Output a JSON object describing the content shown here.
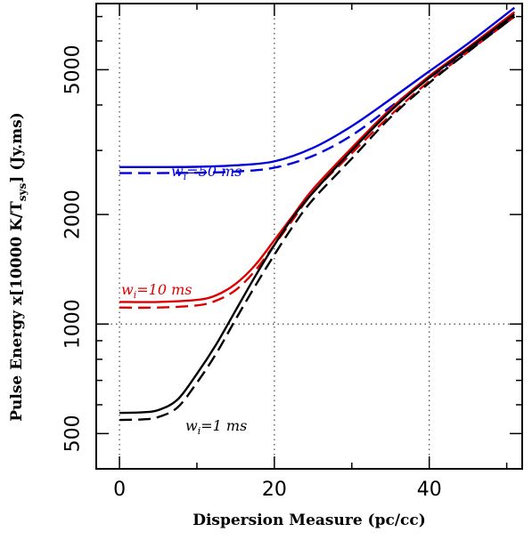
{
  "chart_data": {
    "type": "line",
    "xlabel": "Dispersion Measure (pc/cc)",
    "ylabel": "Pulse Energy x[10000 K/T",
    "ylabel_sub": "sys",
    "ylabel_tail": "]  (Jy.ms)",
    "xlim": [
      -3,
      52
    ],
    "ylim": [
      400,
      7600
    ],
    "y_scale": "log",
    "x_ticks": [
      0,
      20,
      40
    ],
    "x_tick_labels": [
      "0",
      "20",
      "40"
    ],
    "x_minor_ticks": [
      10,
      30,
      50
    ],
    "y_major_ticks": [
      500,
      1000,
      2000,
      5000
    ],
    "y_tick_labels": [
      "500",
      "1000",
      "2000",
      "5000"
    ],
    "y_minor_ticks": [
      600,
      700,
      800,
      900,
      3000,
      4000,
      6000,
      7000
    ],
    "reference_lines": {
      "x": [
        0,
        20,
        40
      ],
      "y": [
        1000
      ]
    },
    "annotations": [
      {
        "text": "w",
        "sub": "i",
        "rest": "=50 ms",
        "color": "#0000dd"
      },
      {
        "text": "w",
        "sub": "i",
        "rest": "=10 ms",
        "color": "#dd0000"
      },
      {
        "text": "w",
        "sub": "i",
        "rest": "=1 ms",
        "color": "#000000"
      }
    ],
    "series": [
      {
        "width": "50 ms",
        "style": "solid",
        "color": "#0000dd",
        "x": [
          0,
          5,
          10,
          15,
          20,
          25,
          30,
          35,
          40,
          45,
          51
        ],
        "y": [
          2700,
          2700,
          2705,
          2730,
          2800,
          3050,
          3500,
          4150,
          4950,
          5900,
          7400
        ]
      },
      {
        "width": "50 ms",
        "style": "dashed",
        "color": "#0000dd",
        "x": [
          0,
          5,
          10,
          15,
          20,
          25,
          30,
          35,
          40,
          45,
          51
        ],
        "y": [
          2600,
          2600,
          2605,
          2625,
          2690,
          2900,
          3300,
          3950,
          4750,
          5650,
          7000
        ]
      },
      {
        "width": "10 ms",
        "style": "solid",
        "color": "#dd0000",
        "x": [
          0,
          5,
          10,
          12.5,
          15,
          17.5,
          20,
          22.5,
          25,
          30,
          35,
          40,
          45,
          51
        ],
        "y": [
          1150,
          1150,
          1165,
          1200,
          1290,
          1450,
          1700,
          2000,
          2350,
          3050,
          3900,
          4800,
          5750,
          7200
        ]
      },
      {
        "width": "10 ms",
        "style": "dashed",
        "color": "#dd0000",
        "x": [
          0,
          5,
          10,
          12.5,
          15,
          17.5,
          20,
          22.5,
          25,
          30,
          35,
          40,
          45,
          51
        ],
        "y": [
          1110,
          1110,
          1125,
          1160,
          1240,
          1400,
          1650,
          1950,
          2300,
          2950,
          3750,
          4650,
          5600,
          7000
        ]
      },
      {
        "width": "1 ms",
        "style": "solid",
        "color": "#000000",
        "x": [
          0,
          3,
          5,
          7.5,
          10,
          12.5,
          15,
          17.5,
          20,
          22.5,
          25,
          30,
          35,
          40,
          45,
          51
        ],
        "y": [
          570,
          572,
          580,
          620,
          730,
          880,
          1090,
          1350,
          1650,
          1980,
          2300,
          3000,
          3850,
          4750,
          5700,
          7100
        ]
      },
      {
        "width": "1 ms",
        "style": "dashed",
        "color": "#000000",
        "x": [
          0,
          3,
          5,
          7.5,
          10,
          12.5,
          15,
          17.5,
          20,
          22.5,
          25,
          30,
          35,
          40,
          45,
          51
        ],
        "y": [
          545,
          547,
          555,
          590,
          690,
          830,
          1030,
          1270,
          1550,
          1870,
          2200,
          2850,
          3700,
          4600,
          5600,
          7000
        ]
      }
    ]
  }
}
